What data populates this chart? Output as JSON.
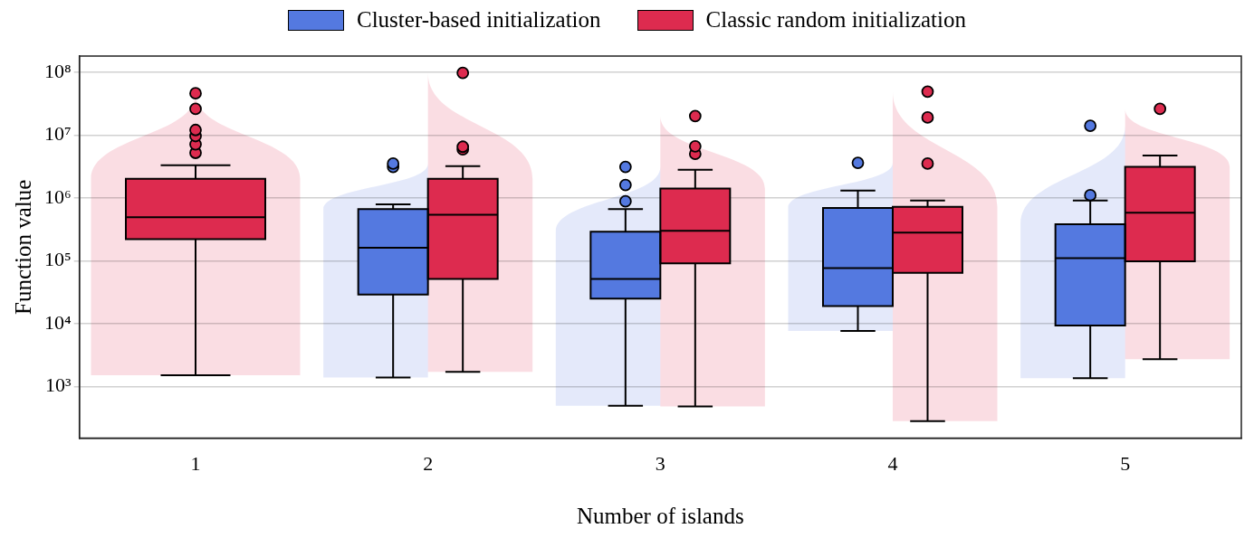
{
  "chart_data": {
    "type": "box",
    "categories": [
      "1",
      "2",
      "3",
      "4",
      "5"
    ],
    "xlabel": "Number of islands",
    "ylabel": "Function value",
    "log": true,
    "grid": "y",
    "legend": "top",
    "ylim": [
      150,
      180000000
    ],
    "yticks": [
      {
        "value": 1000,
        "label": "10³"
      },
      {
        "value": 10000,
        "label": "10⁴"
      },
      {
        "value": 100000,
        "label": "10⁵"
      },
      {
        "value": 1000000,
        "label": "10⁶"
      },
      {
        "value": 10000000,
        "label": "10⁷"
      },
      {
        "value": 100000000,
        "label": "10⁸"
      }
    ],
    "series": [
      {
        "name": "Cluster-based initialization",
        "color": "#5479e0",
        "boxes": [
          null,
          {
            "low": 1380,
            "q1": 29000,
            "median": 160000,
            "q3": 660000,
            "high": 790000,
            "outliers": [
              3100000,
              3500000
            ]
          },
          {
            "low": 490,
            "q1": 25000,
            "median": 51000,
            "q3": 290000,
            "high": 660000,
            "outliers": [
              880000,
              1600000,
              3100000
            ]
          },
          {
            "low": 7600,
            "q1": 19000,
            "median": 76000,
            "q3": 690000,
            "high": 1300000,
            "outliers": [
              3600000
            ]
          },
          {
            "low": 1350,
            "q1": 9300,
            "median": 110000,
            "q3": 380000,
            "high": 910000,
            "outliers": [
              1100000,
              14000000
            ]
          }
        ]
      },
      {
        "name": "Classic random initialization",
        "color": "#dd2b4f",
        "boxes": [
          {
            "low": 1500,
            "q1": 220000,
            "median": 490000,
            "q3": 2000000,
            "high": 3300000,
            "outliers": [
              5200000,
              7100000,
              9600000,
              12000000,
              26000000,
              46000000
            ]
          },
          {
            "low": 1700,
            "q1": 51000,
            "median": 540000,
            "q3": 2000000,
            "high": 3200000,
            "outliers": [
              5900000,
              6500000,
              97000000
            ]
          },
          {
            "low": 480,
            "q1": 91000,
            "median": 300000,
            "q3": 1400000,
            "high": 2800000,
            "outliers": [
              5000000,
              6600000,
              20000000
            ]
          },
          {
            "low": 280,
            "q1": 64000,
            "median": 280000,
            "q3": 720000,
            "high": 910000,
            "outliers": [
              3500000,
              19000000,
              49000000
            ]
          },
          {
            "low": 2700,
            "q1": 98000,
            "median": 580000,
            "q3": 3100000,
            "high": 4700000,
            "outliers": [
              26000000
            ]
          }
        ]
      }
    ]
  }
}
